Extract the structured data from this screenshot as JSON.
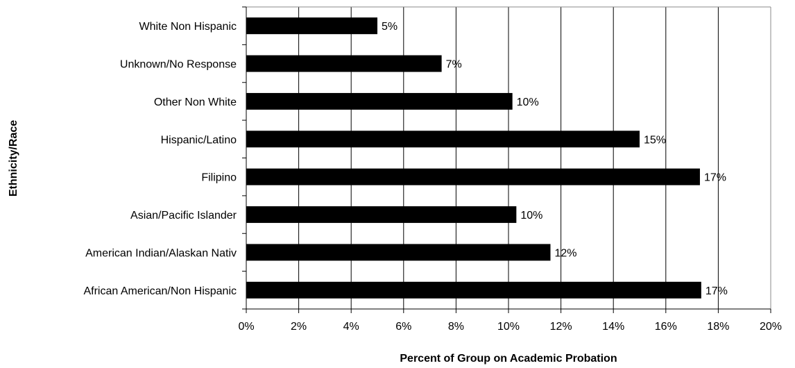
{
  "chart_data": {
    "type": "bar",
    "orientation": "horizontal",
    "title": "",
    "xlabel": "Percent of Group on Academic Probation",
    "ylabel": "Ethnicity/Race",
    "categories": [
      "White Non Hispanic",
      "Unknown/No Response",
      "Other Non White",
      "Hispanic/Latino",
      "Filipino",
      "Asian/Pacific Islander",
      "American Indian/Alaskan Nativ",
      "African American/Non Hispanic"
    ],
    "values": [
      5.0,
      7.45,
      10.15,
      15.0,
      17.3,
      10.3,
      11.6,
      17.35
    ],
    "data_labels": [
      "5%",
      "7%",
      "10%",
      "15%",
      "17%",
      "10%",
      "12%",
      "17%"
    ],
    "xlim": [
      0,
      20
    ],
    "x_ticks": [
      "0%",
      "2%",
      "4%",
      "6%",
      "8%",
      "10%",
      "12%",
      "14%",
      "16%",
      "18%",
      "20%"
    ],
    "grid": true,
    "legend": "none",
    "bar_color": "#000000",
    "grid_color": "#000000"
  }
}
